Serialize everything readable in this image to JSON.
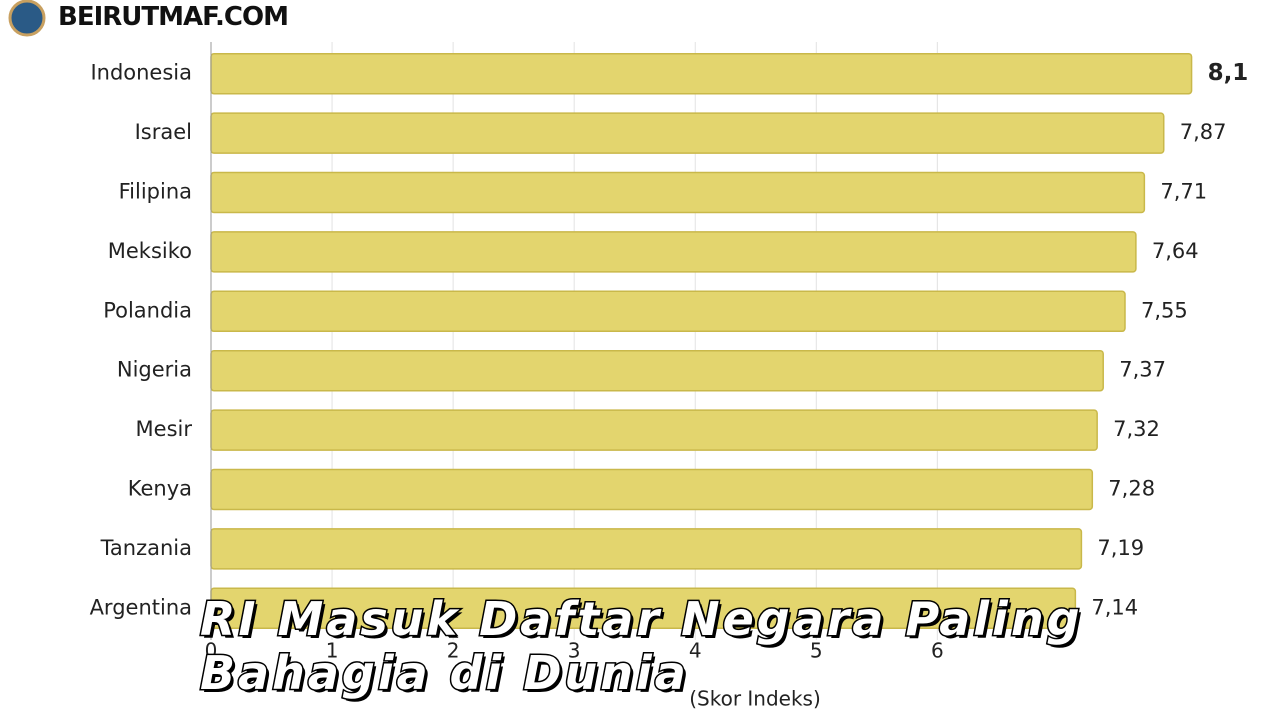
{
  "site": "BEIRUTMAF.COM",
  "headline": "RI Masuk Daftar Negara Paling Bahagia di Dunia",
  "chart_data": {
    "type": "barh",
    "categories": [
      "Indonesia",
      "Israel",
      "Filipina",
      "Meksiko",
      "Polandia",
      "Nigeria",
      "Mesir",
      "Kenya",
      "Tanzania",
      "Argentina"
    ],
    "values": [
      8.1,
      7.87,
      7.71,
      7.64,
      7.55,
      7.37,
      7.32,
      7.28,
      7.19,
      7.14
    ],
    "value_labels": [
      "8,1",
      "7,87",
      "7,71",
      "7,64",
      "7,55",
      "7,37",
      "7,32",
      "7,28",
      "7,19",
      "7,14"
    ],
    "color": "#e3d56e",
    "xlim": [
      0,
      8.5
    ],
    "xticks": [
      0,
      1,
      2,
      3,
      4,
      5,
      6
    ],
    "xlabel": "(Skor Indeks)",
    "grid": true
  }
}
